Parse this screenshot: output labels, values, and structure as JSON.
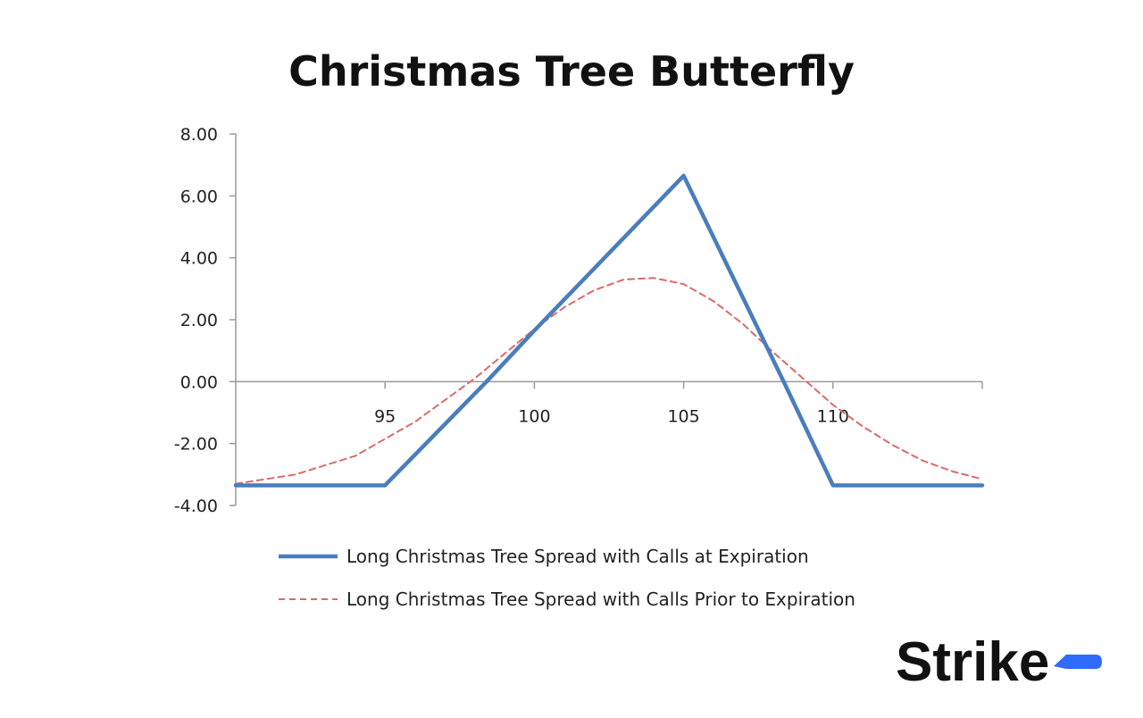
{
  "chart_data": {
    "type": "line",
    "title": "Christmas Tree Butterfly",
    "xlabel": "",
    "ylabel": "",
    "xlim": [
      90,
      115
    ],
    "ylim": [
      -4,
      8
    ],
    "x_ticks": [
      {
        "value": 95,
        "label": "95"
      },
      {
        "value": 100,
        "label": "100"
      },
      {
        "value": 105,
        "label": "105"
      },
      {
        "value": 110,
        "label": "110"
      }
    ],
    "y_ticks": [
      {
        "value": 8,
        "label": "8.00"
      },
      {
        "value": 6,
        "label": "6.00"
      },
      {
        "value": 4,
        "label": "4.00"
      },
      {
        "value": 2,
        "label": "2.00"
      },
      {
        "value": 0,
        "label": "0.00"
      },
      {
        "value": -2,
        "label": "-2.00"
      },
      {
        "value": -4,
        "label": "-4.00"
      }
    ],
    "grid": false,
    "legend_position": "bottom",
    "series": [
      {
        "name": "Long Christmas Tree Spread with Calls at Expiration",
        "color": "#4a7dbd",
        "style": "solid",
        "points": [
          [
            90,
            -3.35
          ],
          [
            95,
            -3.35
          ],
          [
            98.4,
            0
          ],
          [
            100,
            1.65
          ],
          [
            105,
            6.65
          ],
          [
            108.35,
            0
          ],
          [
            110,
            -3.35
          ],
          [
            115,
            -3.35
          ]
        ]
      },
      {
        "name": "Long Christmas Tree Spread with Calls Prior to Expiration",
        "color": "#d96b6b",
        "style": "dashed",
        "points": [
          [
            90,
            -3.3
          ],
          [
            92,
            -3.0
          ],
          [
            94,
            -2.4
          ],
          [
            96,
            -1.3
          ],
          [
            97,
            -0.6
          ],
          [
            98,
            0.1
          ],
          [
            99,
            0.9
          ],
          [
            100,
            1.7
          ],
          [
            101,
            2.4
          ],
          [
            102,
            2.95
          ],
          [
            103,
            3.3
          ],
          [
            104,
            3.35
          ],
          [
            105,
            3.15
          ],
          [
            106,
            2.6
          ],
          [
            107,
            1.85
          ],
          [
            108,
            0.95
          ],
          [
            109,
            0.1
          ],
          [
            110,
            -0.75
          ],
          [
            111,
            -1.45
          ],
          [
            112,
            -2.05
          ],
          [
            113,
            -2.55
          ],
          [
            114,
            -2.9
          ],
          [
            115,
            -3.15
          ]
        ]
      }
    ]
  },
  "brand": {
    "logo_text": "Strike",
    "accent_color": "#2f6bff"
  }
}
